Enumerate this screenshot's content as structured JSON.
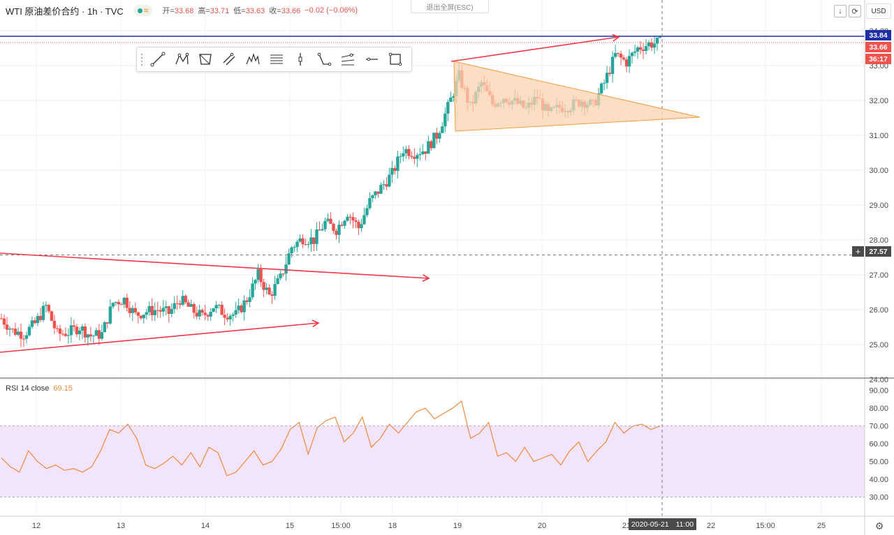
{
  "header": {
    "symbol": "WTI 原油差价合约 · 1h · TVC",
    "open_label": "开=",
    "open": "33.68",
    "high_label": "高=",
    "high": "33.71",
    "low_label": "低=",
    "low": "33.63",
    "close_label": "收=",
    "close": "33.66",
    "change": "−0.02 (−0.06%)",
    "currency": "USD",
    "exit_fullscreen": "退出全屏(ESC)"
  },
  "toolbar": {
    "tools": [
      "trend-line-icon",
      "pattern-icon",
      "polygon-icon",
      "parallel-icon",
      "elliott-icon",
      "fib-icon",
      "vertical-line-icon",
      "path-icon",
      "regression-icon",
      "horizontal-ray-icon",
      "rectangle-icon"
    ]
  },
  "price_tags": {
    "blue_line": "33.84",
    "last_price": "33.66",
    "countdown": "36:17",
    "crosshair": "27.57",
    "crosshair_plus": "+"
  },
  "rsi": {
    "title": "RSI 14 close",
    "value": "69.15",
    "y_ticks": [
      "90.00",
      "80.00",
      "70.00",
      "60.00",
      "50.00",
      "40.00",
      "30.00"
    ],
    "band": [
      30,
      70
    ]
  },
  "date_tag": {
    "date": "2020-05-21",
    "time": "11:00"
  },
  "colors": {
    "up": "#26a69a",
    "down": "#ef5350",
    "drawing": "#f23645",
    "triangle_fill": "#fbd3b0",
    "triangle_stroke": "#f39c43",
    "blue_line": "#1e2ea8",
    "rsi_line": "#f08a3c",
    "rsi_band": "#f1e4fb"
  },
  "chart_data": {
    "type": "candlestick",
    "title": "WTI 原油差价合约 · 1h · TVC",
    "xlabel": "",
    "ylabel": "",
    "x_ticks": [
      "12",
      "13",
      "14",
      "15",
      "15:00",
      "18",
      "19",
      "19",
      "20",
      "21",
      "22",
      "15:00",
      "25"
    ],
    "y_ticks": [
      "24.00",
      "25.00",
      "26.00",
      "27.00",
      "28.00",
      "29.00",
      "30.00",
      "31.00",
      "32.00",
      "33.00",
      "34.00"
    ],
    "ylim": [
      24.0,
      34.0
    ],
    "grid": true,
    "close_path": [
      [
        0,
        25.75
      ],
      [
        4,
        25.4
      ],
      [
        8,
        25.3
      ],
      [
        12,
        25.6
      ],
      [
        16,
        26.1
      ],
      [
        20,
        25.3
      ],
      [
        24,
        25.35
      ],
      [
        28,
        25.5
      ],
      [
        32,
        25.25
      ],
      [
        36,
        25.3
      ],
      [
        40,
        26.2
      ],
      [
        44,
        26.3
      ],
      [
        48,
        25.85
      ],
      [
        52,
        25.95
      ],
      [
        56,
        26.0
      ],
      [
        60,
        25.9
      ],
      [
        64,
        26.3
      ],
      [
        68,
        26.0
      ],
      [
        72,
        25.8
      ],
      [
        76,
        26.1
      ],
      [
        80,
        25.9
      ],
      [
        84,
        25.85
      ],
      [
        88,
        26.3
      ],
      [
        92,
        27.0
      ],
      [
        96,
        26.4
      ],
      [
        100,
        26.9
      ],
      [
        104,
        27.8
      ],
      [
        108,
        28.05
      ],
      [
        112,
        28.0
      ],
      [
        116,
        28.5
      ],
      [
        120,
        28.3
      ],
      [
        124,
        28.8
      ],
      [
        128,
        28.35
      ],
      [
        132,
        29.1
      ],
      [
        136,
        29.5
      ],
      [
        140,
        29.9
      ],
      [
        144,
        30.6
      ],
      [
        148,
        30.5
      ],
      [
        152,
        30.6
      ],
      [
        156,
        31.0
      ],
      [
        160,
        31.8
      ],
      [
        164,
        32.7
      ],
      [
        168,
        31.8
      ],
      [
        172,
        32.5
      ],
      [
        176,
        31.9
      ],
      [
        180,
        32.1
      ],
      [
        184,
        31.95
      ],
      [
        188,
        31.75
      ],
      [
        192,
        32.1
      ],
      [
        196,
        31.6
      ],
      [
        200,
        31.8
      ],
      [
        204,
        31.85
      ],
      [
        208,
        32.0
      ],
      [
        212,
        31.85
      ],
      [
        216,
        32.5
      ],
      [
        220,
        33.3
      ],
      [
        224,
        33.1
      ],
      [
        228,
        33.5
      ],
      [
        232,
        33.62
      ],
      [
        236,
        33.66
      ]
    ],
    "drawings": {
      "blue_horizontal_line": 33.84,
      "crosshair_price": 27.57
    }
  },
  "rsi_data": {
    "values": [
      52,
      47,
      44,
      56,
      50,
      46,
      48,
      45,
      46,
      44,
      47,
      56,
      68,
      66,
      71,
      63,
      48,
      46,
      49,
      53,
      48,
      55,
      47,
      58,
      55,
      42,
      44,
      50,
      56,
      48,
      50,
      57,
      68,
      72,
      54,
      69,
      73,
      75,
      61,
      66,
      75,
      58,
      63,
      71,
      66,
      72,
      78,
      80,
      74,
      77,
      80,
      84,
      63,
      66,
      72,
      53,
      55,
      50,
      58,
      50,
      52,
      54,
      48,
      56,
      61,
      50,
      56,
      61,
      72,
      66,
      70,
      71,
      68,
      70
    ]
  }
}
